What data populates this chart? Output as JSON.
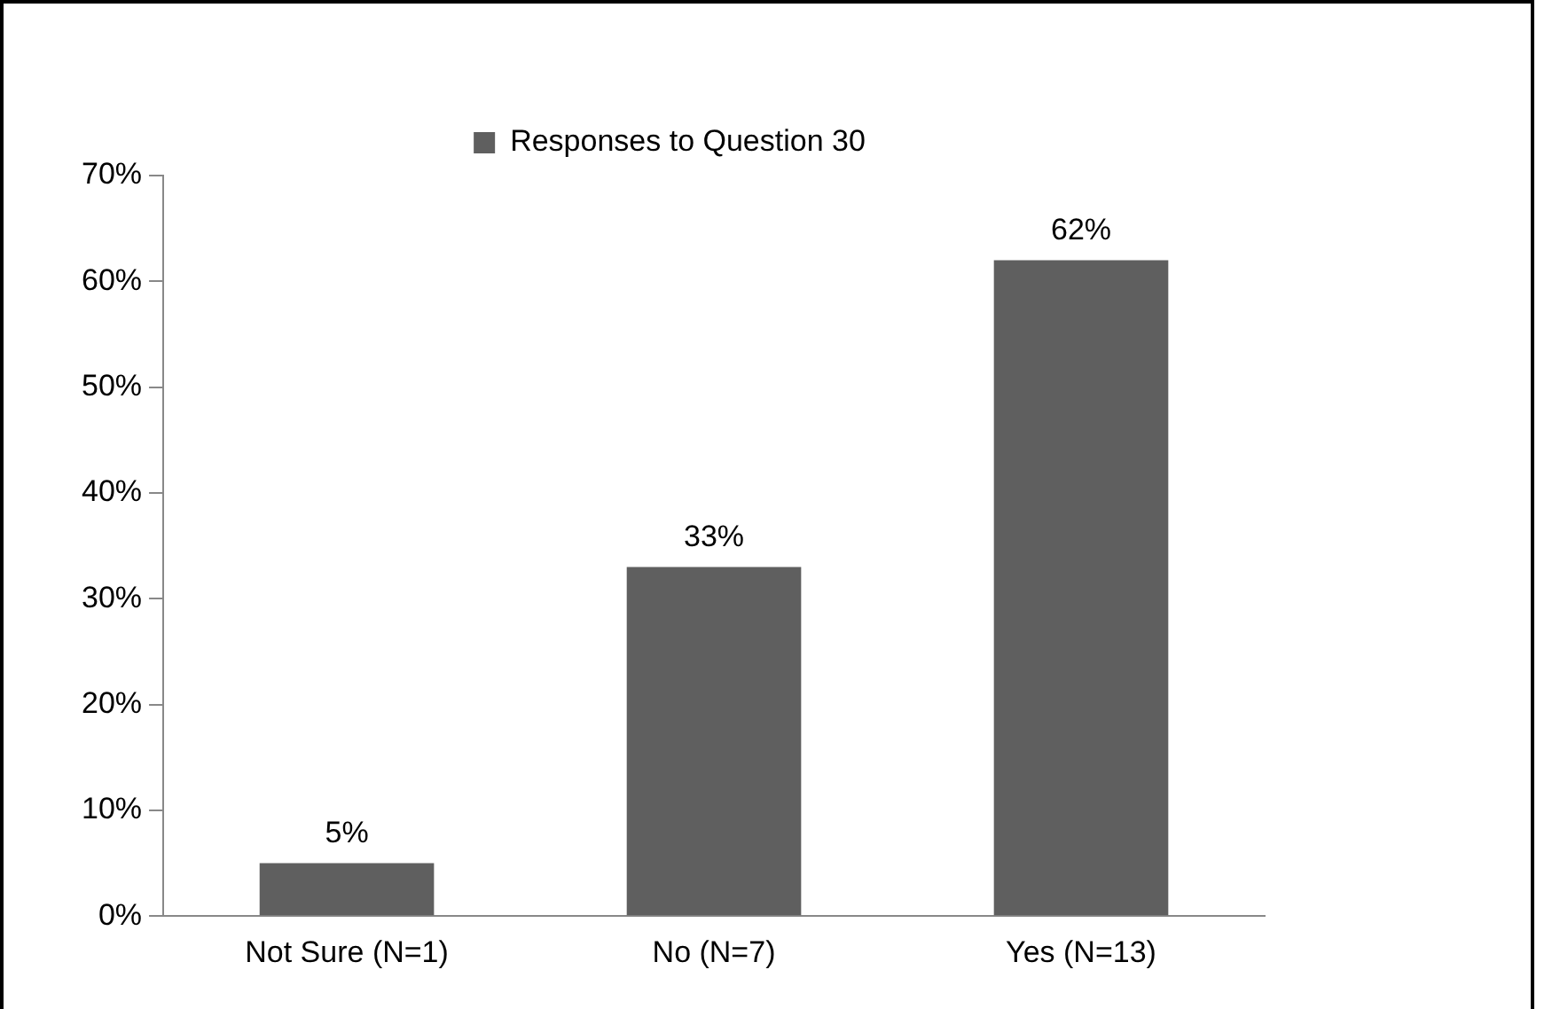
{
  "chart_data": {
    "type": "bar",
    "categories": [
      "Not Sure (N=1)",
      "No (N=7)",
      "Yes (N=13)"
    ],
    "series": [
      {
        "name": "Responses to Question 30",
        "color": "#5f5f5f",
        "values": [
          5,
          33,
          62
        ],
        "value_labels": [
          "5%",
          "33%",
          "62%"
        ]
      }
    ],
    "ylim": [
      0,
      70
    ],
    "yticks": [
      {
        "value": 0,
        "label": "0%"
      },
      {
        "value": 10,
        "label": "10%"
      },
      {
        "value": 20,
        "label": "20%"
      },
      {
        "value": 30,
        "label": "30%"
      },
      {
        "value": 40,
        "label": "40%"
      },
      {
        "value": 50,
        "label": "50%"
      },
      {
        "value": 60,
        "label": "60%"
      },
      {
        "value": 70,
        "label": "70%"
      }
    ],
    "grid": false,
    "legend": "top"
  }
}
